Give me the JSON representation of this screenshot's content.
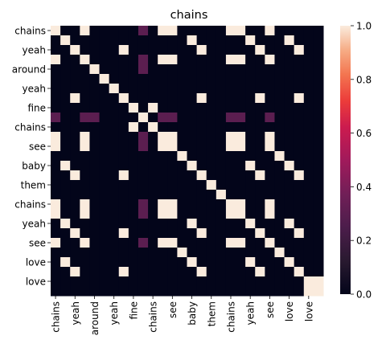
{
  "chart_data": {
    "type": "heatmap",
    "title": "chains",
    "xlabel": "",
    "ylabel": "",
    "tokens": [
      "chains",
      "yeah",
      "around",
      "yeah",
      "fine",
      "chains",
      "see",
      "baby",
      "them",
      "chains",
      "yeah",
      "see",
      "love",
      "love"
    ],
    "x_tick_labels": [
      "chains",
      "yeah",
      "around",
      "yeah",
      "fine",
      "chains",
      "see",
      "baby",
      "them",
      "chains",
      "yeah",
      "see",
      "love",
      "love"
    ],
    "y_tick_labels": [
      "chains",
      "yeah",
      "around",
      "yeah",
      "fine",
      "chains",
      "see",
      "baby",
      "them",
      "chains",
      "yeah",
      "see",
      "love",
      "love"
    ],
    "x_tick_every": 2,
    "y_tick_every": 2,
    "vmin": 0.0,
    "vmax": 1.0,
    "colorbar_ticks": [
      "0.0",
      "0.2",
      "0.4",
      "0.6",
      "0.8",
      "1.0"
    ],
    "colorbar_tick_values": [
      0.0,
      0.2,
      0.4,
      0.6,
      0.8,
      1.0
    ],
    "colormap": "rocket",
    "values": [
      [
        1,
        0,
        0,
        1,
        0,
        0,
        0,
        0,
        0,
        0.3,
        0,
        1,
        1,
        0,
        0,
        0,
        0,
        0,
        1,
        1,
        0,
        0,
        1,
        0,
        0,
        0,
        0,
        0
      ],
      [
        0,
        1,
        0,
        0,
        0,
        0,
        0,
        0,
        0,
        0,
        0,
        0,
        0,
        0,
        1,
        0,
        0,
        0,
        0,
        0,
        1,
        0,
        0,
        0,
        1,
        0,
        0,
        0
      ],
      [
        0,
        0,
        1,
        0,
        0,
        0,
        0,
        1,
        0,
        0,
        0,
        0,
        0,
        0,
        0,
        1,
        0,
        0,
        0,
        0,
        0,
        1,
        0,
        0,
        0,
        1,
        0,
        0
      ],
      [
        1,
        0,
        0,
        1,
        0,
        0,
        0,
        0,
        0,
        0.3,
        0,
        1,
        1,
        0,
        0,
        0,
        0,
        0,
        1,
        1,
        0,
        0,
        1,
        0,
        0,
        0,
        0,
        0
      ],
      [
        0,
        0,
        0,
        0,
        1,
        0,
        0,
        0,
        0,
        0.3,
        0,
        0,
        0,
        0,
        0,
        0,
        0,
        0,
        0,
        0,
        0,
        0,
        0,
        0,
        0,
        0,
        0,
        0
      ],
      [
        0,
        0,
        0,
        0,
        0,
        1,
        0,
        0,
        0,
        0,
        0,
        0,
        0,
        0,
        0,
        0,
        0,
        0,
        0,
        0,
        0,
        0,
        0,
        0,
        0,
        0,
        0,
        0
      ],
      [
        0,
        0,
        0,
        0,
        0,
        0,
        1,
        0,
        0,
        0,
        0,
        0,
        0,
        0,
        0,
        0,
        0,
        0,
        0,
        0,
        0,
        0,
        0,
        0,
        0,
        0,
        0,
        0
      ],
      [
        0,
        0,
        1,
        0,
        0,
        0,
        0,
        1,
        0,
        0,
        0,
        0,
        0,
        0,
        0,
        1,
        0,
        0,
        0,
        0,
        0,
        1,
        0,
        0,
        0,
        1,
        0,
        0
      ],
      [
        0,
        0,
        0,
        0,
        0,
        0,
        0,
        0,
        1,
        0,
        1,
        0,
        0,
        0,
        0,
        0,
        0,
        0,
        0,
        0,
        0,
        0,
        0,
        0,
        0,
        0,
        0,
        0
      ],
      [
        0.3,
        0,
        0,
        0.3,
        0.3,
        0,
        0,
        0,
        0,
        1,
        0,
        0.3,
        0.3,
        0,
        0,
        0,
        0,
        0,
        0.3,
        0.3,
        0,
        0,
        0.3,
        0,
        0,
        0,
        0,
        0
      ],
      [
        0,
        0,
        0,
        0,
        0,
        0,
        0,
        0,
        1,
        0,
        1,
        0,
        0,
        0,
        0,
        0,
        0,
        0,
        0,
        0,
        0,
        0,
        0,
        0,
        0,
        0,
        0,
        0
      ],
      [
        1,
        0,
        0,
        1,
        0,
        0,
        0,
        0,
        0,
        0.3,
        0,
        1,
        1,
        0,
        0,
        0,
        0,
        0,
        1,
        1,
        0,
        0,
        1,
        0,
        0,
        0,
        0,
        0
      ],
      [
        1,
        0,
        0,
        1,
        0,
        0,
        0,
        0,
        0,
        0.3,
        0,
        1,
        1,
        0,
        0,
        0,
        0,
        0,
        1,
        1,
        0,
        0,
        1,
        0,
        0,
        0,
        0,
        0
      ],
      [
        0,
        0,
        0,
        0,
        0,
        0,
        0,
        0,
        0,
        0,
        0,
        0,
        0,
        1,
        0,
        0,
        0,
        0,
        0,
        0,
        0,
        0,
        0,
        1,
        0,
        0,
        0,
        0
      ],
      [
        0,
        1,
        0,
        0,
        0,
        0,
        0,
        0,
        0,
        0,
        0,
        0,
        0,
        0,
        1,
        0,
        0,
        0,
        0,
        0,
        1,
        0,
        0,
        0,
        1,
        0,
        0,
        0
      ],
      [
        0,
        0,
        1,
        0,
        0,
        0,
        0,
        1,
        0,
        0,
        0,
        0,
        0,
        0,
        0,
        1,
        0,
        0,
        0,
        0,
        0,
        1,
        0,
        0,
        0,
        1,
        0,
        0
      ],
      [
        0,
        0,
        0,
        0,
        0,
        0,
        0,
        0,
        0,
        0,
        0,
        0,
        0,
        0,
        0,
        0,
        1,
        0,
        0,
        0,
        0,
        0,
        0,
        0,
        0,
        0,
        0,
        0
      ],
      [
        0,
        0,
        0,
        0,
        0,
        0,
        0,
        0,
        0,
        0,
        0,
        0,
        0,
        0,
        0,
        0,
        0,
        1,
        0,
        0,
        0,
        0,
        0,
        0,
        0,
        0,
        0,
        0
      ],
      [
        1,
        0,
        0,
        1,
        0,
        0,
        0,
        0,
        0,
        0.3,
        0,
        1,
        1,
        0,
        0,
        0,
        0,
        0,
        1,
        1,
        0,
        0,
        1,
        0,
        0,
        0,
        0,
        0
      ],
      [
        1,
        0,
        0,
        1,
        0,
        0,
        0,
        0,
        0,
        0.3,
        0,
        1,
        1,
        0,
        0,
        0,
        0,
        0,
        1,
        1,
        0,
        0,
        1,
        0,
        0,
        0,
        0,
        0
      ],
      [
        0,
        1,
        0,
        0,
        0,
        0,
        0,
        0,
        0,
        0,
        0,
        0,
        0,
        0,
        1,
        0,
        0,
        0,
        0,
        0,
        1,
        0,
        0,
        0,
        1,
        0,
        0,
        0
      ],
      [
        0,
        0,
        1,
        0,
        0,
        0,
        0,
        1,
        0,
        0,
        0,
        0,
        0,
        0,
        0,
        1,
        0,
        0,
        0,
        0,
        0,
        1,
        0,
        0,
        0,
        1,
        0,
        0
      ],
      [
        1,
        0,
        0,
        1,
        0,
        0,
        0,
        0,
        0,
        0.3,
        0,
        1,
        1,
        0,
        0,
        0,
        0,
        0,
        1,
        1,
        0,
        0,
        1,
        0,
        0,
        0,
        0,
        0
      ],
      [
        0,
        0,
        0,
        0,
        0,
        0,
        0,
        0,
        0,
        0,
        0,
        0,
        0,
        1,
        0,
        0,
        0,
        0,
        0,
        0,
        0,
        0,
        0,
        1,
        0,
        0,
        0,
        0
      ],
      [
        0,
        1,
        0,
        0,
        0,
        0,
        0,
        0,
        0,
        0,
        0,
        0,
        0,
        0,
        1,
        0,
        0,
        0,
        0,
        0,
        1,
        0,
        0,
        0,
        1,
        0,
        0,
        0
      ],
      [
        0,
        0,
        1,
        0,
        0,
        0,
        0,
        1,
        0,
        0,
        0,
        0,
        0,
        0,
        0,
        1,
        0,
        0,
        0,
        0,
        0,
        1,
        0,
        0,
        0,
        1,
        0,
        0
      ],
      [
        0,
        0,
        0,
        0,
        0,
        0,
        0,
        0,
        0,
        0,
        0,
        0,
        0,
        0,
        0,
        0,
        0,
        0,
        0,
        0,
        0,
        0,
        0,
        0,
        0,
        0,
        1,
        1
      ],
      [
        0,
        0,
        0,
        0,
        0,
        0,
        0,
        0,
        0,
        0,
        0,
        0,
        0,
        0,
        0,
        0,
        0,
        0,
        0,
        0,
        0,
        0,
        0,
        0,
        0,
        0,
        1,
        1
      ]
    ]
  }
}
